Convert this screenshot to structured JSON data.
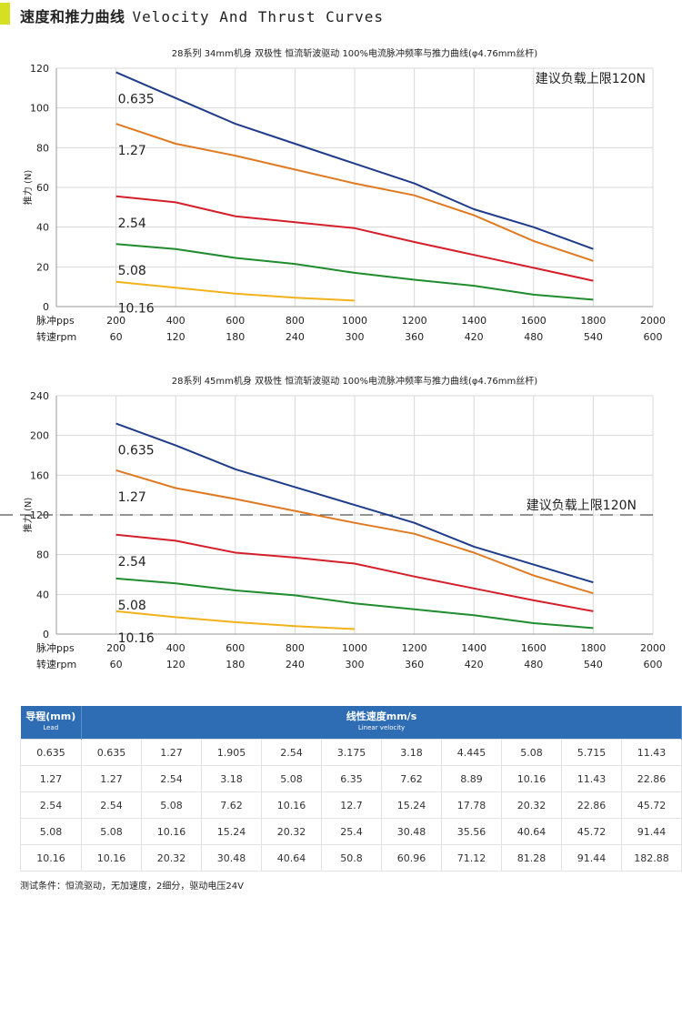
{
  "header": {
    "title_cn": "速度和推力曲线",
    "title_en": "Velocity And Thrust Curves"
  },
  "chart_data": [
    {
      "type": "line",
      "title": "28系列 34mm机身 双极性 恒流斩波驱动 100%电流脉冲频率与推力曲线(φ4.76mm丝杆)",
      "ylabel": "推力 (N)",
      "xlabel_rows": [
        "脉冲pps",
        "转速rpm"
      ],
      "xlim": [
        0,
        2000
      ],
      "ylim": [
        0,
        120
      ],
      "x_ticks": [
        200,
        400,
        600,
        800,
        1000,
        1200,
        1400,
        1600,
        1800,
        2000
      ],
      "x_ticks_rpm": [
        "60",
        "120",
        "180",
        "240",
        "300",
        "360",
        "420",
        "480",
        "540",
        "600"
      ],
      "y_ticks": [
        0,
        20,
        40,
        60,
        80,
        100,
        120
      ],
      "annotation": "建议负载上限120N",
      "reference_line": null,
      "series": [
        {
          "name": "0.635",
          "color": "#1f3c8a",
          "x": [
            200,
            400,
            600,
            800,
            1000,
            1200,
            1400,
            1600,
            1800
          ],
          "y": [
            118,
            105,
            92,
            82,
            72,
            62,
            49,
            40,
            29
          ]
        },
        {
          "name": "1.27",
          "color": "#e07a22",
          "x": [
            200,
            400,
            600,
            800,
            1000,
            1200,
            1400,
            1600,
            1800
          ],
          "y": [
            92,
            82,
            76,
            69,
            62,
            56,
            46,
            33,
            23
          ]
        },
        {
          "name": "2.54",
          "color": "#d4202b",
          "x": [
            200,
            400,
            600,
            800,
            1000,
            1200,
            1400,
            1600,
            1800
          ],
          "y": [
            55.5,
            52.5,
            45.5,
            42.5,
            39.5,
            32.5,
            26,
            19.5,
            13
          ]
        },
        {
          "name": "5.08",
          "color": "#1f8c2e",
          "x": [
            200,
            400,
            600,
            800,
            1000,
            1200,
            1400,
            1600,
            1800
          ],
          "y": [
            31.5,
            29,
            24.5,
            21.5,
            17,
            13.5,
            10.5,
            6,
            3.5
          ]
        },
        {
          "name": "10.16",
          "color": "#f2b21b",
          "x": [
            200,
            400,
            600,
            800,
            1000
          ],
          "y": [
            12.5,
            9.5,
            6.5,
            4.5,
            3
          ]
        }
      ]
    },
    {
      "type": "line",
      "title": "28系列 45mm机身 双极性 恒流斩波驱动 100%电流脉冲频率与推力曲线(φ4.76mm丝杆)",
      "ylabel": "推力 (N)",
      "xlabel_rows": [
        "脉冲pps",
        "转速rpm"
      ],
      "xlim": [
        0,
        2000
      ],
      "ylim": [
        0,
        240
      ],
      "x_ticks": [
        200,
        400,
        600,
        800,
        1000,
        1200,
        1400,
        1600,
        1800,
        2000
      ],
      "x_ticks_rpm": [
        "60",
        "120",
        "180",
        "240",
        "300",
        "360",
        "420",
        "480",
        "540",
        "600"
      ],
      "y_ticks": [
        0,
        40,
        80,
        120,
        160,
        200,
        240
      ],
      "annotation": "建议负载上限120N",
      "reference_line": 120,
      "series": [
        {
          "name": "0.635",
          "color": "#1f3c8a",
          "x": [
            200,
            400,
            600,
            800,
            1000,
            1200,
            1400,
            1600,
            1800
          ],
          "y": [
            212,
            190,
            166,
            148,
            130,
            112,
            88,
            70,
            52
          ]
        },
        {
          "name": "1.27",
          "color": "#e07a22",
          "x": [
            200,
            400,
            600,
            800,
            1000,
            1200,
            1400,
            1600,
            1800
          ],
          "y": [
            165,
            147,
            136,
            124,
            112,
            101,
            82,
            59,
            41
          ]
        },
        {
          "name": "2.54",
          "color": "#d4202b",
          "x": [
            200,
            400,
            600,
            800,
            1000,
            1200,
            1400,
            1600,
            1800
          ],
          "y": [
            100,
            94,
            82,
            77,
            71,
            58,
            46,
            34,
            23
          ]
        },
        {
          "name": "5.08",
          "color": "#1f8c2e",
          "x": [
            200,
            400,
            600,
            800,
            1000,
            1200,
            1400,
            1600,
            1800
          ],
          "y": [
            56,
            51,
            44,
            39,
            31,
            25,
            19,
            11,
            6
          ]
        },
        {
          "name": "10.16",
          "color": "#f2b21b",
          "x": [
            200,
            400,
            600,
            800,
            1000
          ],
          "y": [
            23,
            17,
            12,
            8,
            5
          ]
        }
      ]
    }
  ],
  "table": {
    "head_lead": "导程(mm)",
    "head_lead_sub": "Lead",
    "head_speed": "线性速度mm/s",
    "head_speed_sub": "Linear velocity",
    "rows": [
      [
        "0.635",
        "0.635",
        "1.27",
        "1.905",
        "2.54",
        "3.175",
        "3.18",
        "4.445",
        "5.08",
        "5.715",
        "11.43"
      ],
      [
        "1.27",
        "1.27",
        "2.54",
        "3.18",
        "5.08",
        "6.35",
        "7.62",
        "8.89",
        "10.16",
        "11.43",
        "22.86"
      ],
      [
        "2.54",
        "2.54",
        "5.08",
        "7.62",
        "10.16",
        "12.7",
        "15.24",
        "17.78",
        "20.32",
        "22.86",
        "45.72"
      ],
      [
        "5.08",
        "5.08",
        "10.16",
        "15.24",
        "20.32",
        "25.4",
        "30.48",
        "35.56",
        "40.64",
        "45.72",
        "91.44"
      ],
      [
        "10.16",
        "10.16",
        "20.32",
        "30.48",
        "40.64",
        "50.8",
        "60.96",
        "71.12",
        "81.28",
        "91.44",
        "182.88"
      ]
    ]
  },
  "note": "测试条件：恒流驱动，无加速度，2细分，驱动电压24V"
}
